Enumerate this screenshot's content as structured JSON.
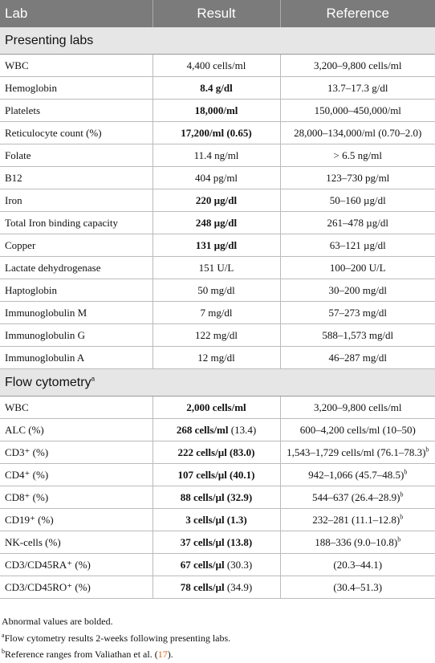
{
  "table": {
    "header": [
      "Lab",
      "Result",
      "Reference"
    ],
    "rows": [
      {
        "section": "Presenting labs"
      },
      {
        "lab": "WBC",
        "result": "4,400 cells/ml",
        "reference": "3,200–9,800 cells/ml"
      },
      {
        "lab": "Hemoglobin",
        "result_bold": "8.4 g/dl",
        "reference": "13.7–17.3 g/dl"
      },
      {
        "lab": "Platelets",
        "result_bold": "18,000/ml",
        "reference": "150,000–450,000/ml"
      },
      {
        "lab": "Reticulocyte count (%)",
        "result_bold": "17,200/ml (0.65)",
        "reference": "28,000–134,000/ml (0.70–2.0)"
      },
      {
        "lab": "Folate",
        "result": "11.4 ng/ml",
        "reference": "> 6.5 ng/ml"
      },
      {
        "lab": "B12",
        "result": "404 pg/ml",
        "reference": "123–730 pg/ml"
      },
      {
        "lab": "Iron",
        "result_bold": "220 µg/dl",
        "reference": "50–160 µg/dl"
      },
      {
        "lab": "Total Iron binding capacity",
        "result_bold": "248 µg/dl",
        "reference": "261–478 µg/dl"
      },
      {
        "lab": "Copper",
        "result_bold": "131 µg/dl",
        "reference": "63–121 µg/dl"
      },
      {
        "lab": "Lactate dehydrogenase",
        "result": "151 U/L",
        "reference": "100–200 U/L"
      },
      {
        "lab": "Haptoglobin",
        "result": "50 mg/dl",
        "reference": "30–200 mg/dl"
      },
      {
        "lab": "Immunoglobulin M",
        "result": "7 mg/dl",
        "reference": "57–273 mg/dl"
      },
      {
        "lab": "Immunoglobulin G",
        "result": "122 mg/dl",
        "reference": "588–1,573 mg/dl"
      },
      {
        "lab": "Immunoglobulin A",
        "result": "12 mg/dl",
        "reference": "46–287 mg/dl"
      },
      {
        "section": "Flow cytometry",
        "section_sup": "a"
      },
      {
        "lab": "WBC",
        "result_bold": "2,000 cells/ml",
        "reference": "3,200–9,800 cells/ml"
      },
      {
        "lab": "ALC (%)",
        "result_bold": "268 cells/ml",
        "result": "(13.4)",
        "reference": "600–4,200 cells/ml (10–50)"
      },
      {
        "lab": "CD3⁺ (%)",
        "result_bold": "222 cells/µl (83.0)",
        "reference": "1,543–1,729 cells/ml (76.1–78.3)",
        "reference_sup": "b"
      },
      {
        "lab": "CD4⁺ (%)",
        "result_bold": "107 cells/µl (40.1)",
        "reference": "942–1,066 (45.7–48.5)",
        "reference_sup": "b"
      },
      {
        "lab": "CD8⁺ (%)",
        "result_bold": "88 cells/µl (32.9)",
        "reference": "544–637 (26.4–28.9)",
        "reference_sup": "b"
      },
      {
        "lab": "CD19⁺ (%)",
        "result_bold": "3 cells/µl (1.3)",
        "reference": "232–281 (11.1–12.8)",
        "reference_sup": "b"
      },
      {
        "lab": "NK-cells (%)",
        "result_bold": "37 cells/µl (13.8)",
        "reference": "188–336 (9.0–10.8)",
        "reference_sup": "b"
      },
      {
        "lab": "CD3/CD45RA⁺ (%)",
        "result_bold": "67 cells/µl",
        "result": "(30.3)",
        "reference": "(20.3–44.1)"
      },
      {
        "lab": "CD3/CD45RO⁺ (%)",
        "result_bold": "78 cells/µl",
        "result": "(34.9)",
        "reference": "(30.4–51.3)"
      }
    ]
  },
  "notes": [
    {
      "text": "Abnormal values are bolded."
    },
    {
      "sup": "a",
      "text": "Flow cytometry results 2-weeks following presenting labs."
    },
    {
      "sup": "b",
      "text": "Reference ranges from Valiathan et al. (",
      "ref": "17",
      "tail": ")."
    }
  ]
}
